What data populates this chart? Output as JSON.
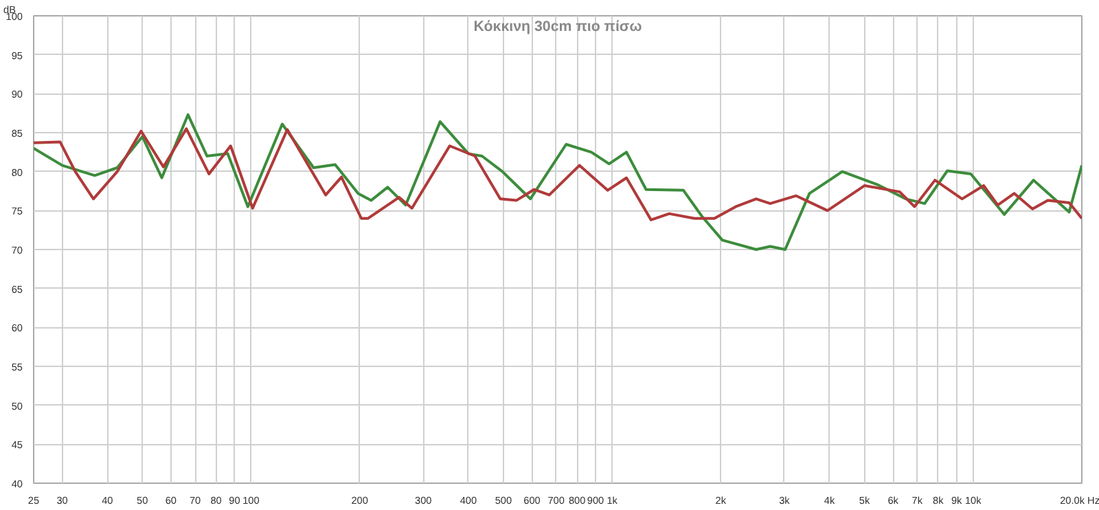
{
  "chart_data": {
    "type": "line",
    "title": "Κόκκινη 30cm πιο πίσω",
    "ylabel": "dB",
    "log": "x",
    "grid": true,
    "line_style": "solid",
    "xlim": [
      25,
      20000
    ],
    "ylim": [
      40,
      100
    ],
    "xticks": [
      25,
      30,
      40,
      50,
      60,
      70,
      80,
      90,
      100,
      200,
      300,
      400,
      500,
      600,
      700,
      800,
      900,
      {
        "value": 1000,
        "label": "1k"
      },
      {
        "value": 2000,
        "label": "2k"
      },
      {
        "value": 3000,
        "label": "3k"
      },
      {
        "value": 4000,
        "label": "4k"
      },
      {
        "value": 5000,
        "label": "5k"
      },
      {
        "value": 6000,
        "label": "6k"
      },
      {
        "value": 7000,
        "label": "7k"
      },
      {
        "value": 8000,
        "label": "8k"
      },
      {
        "value": 9000,
        "label": "9k"
      },
      {
        "value": 10000,
        "label": "10k"
      },
      {
        "value": 20000,
        "label": "20.0k Hz"
      }
    ],
    "yticks": [
      40,
      45,
      50,
      55,
      60,
      65,
      70,
      75,
      80,
      85,
      90,
      95,
      100
    ],
    "series": [
      {
        "color": "#3c8c3c",
        "x": [
          25,
          30,
          36.9,
          42.6,
          50,
          56.6,
          66.9,
          75.5,
          86.2,
          98,
          122,
          149,
          171,
          198,
          215,
          239,
          268,
          334,
          400,
          436,
          497,
          594,
          746,
          876,
          981,
          1096,
          1242,
          1576,
          1771,
          2020,
          2507,
          2741,
          3015,
          3522,
          4340,
          5450,
          6500,
          7340,
          8480,
          9850,
          12200,
          14700,
          18450,
          20000
        ],
        "values": [
          83,
          80.8,
          79.5,
          80.5,
          84.5,
          79.2,
          87.3,
          82,
          82.3,
          75.5,
          86.1,
          80.5,
          80.9,
          77.2,
          76.3,
          78,
          75.7,
          86.4,
          82.3,
          82,
          80,
          76.5,
          83.5,
          82.5,
          81,
          82.5,
          77.7,
          77.6,
          74.3,
          71.2,
          70,
          70.4,
          70,
          77.2,
          80,
          78.3,
          76.5,
          75.9,
          80.1,
          79.7,
          74.5,
          78.9,
          74.8,
          80.8
        ]
      },
      {
        "color": "#b03a3a",
        "x": [
          25,
          29.6,
          32.6,
          36.6,
          42.6,
          49.6,
          57.2,
          66.2,
          76.5,
          87.8,
          101,
          126,
          161,
          178,
          202,
          211,
          257,
          279,
          355,
          417,
          490,
          543,
          608,
          670,
          812,
          972,
          1096,
          1282,
          1440,
          1690,
          1920,
          2200,
          2507,
          2741,
          3230,
          3950,
          5000,
          6260,
          6880,
          7840,
          9320,
          10700,
          11700,
          13000,
          14600,
          16100,
          18450,
          20000
        ],
        "values": [
          83.7,
          83.8,
          80,
          76.5,
          80,
          85.2,
          80.6,
          85.5,
          79.7,
          83.3,
          75.3,
          85.4,
          77,
          79.3,
          74,
          74,
          76.7,
          75.3,
          83.3,
          82,
          76.5,
          76.3,
          77.7,
          77,
          80.8,
          77.6,
          79.2,
          73.8,
          74.6,
          74,
          74,
          75.5,
          76.5,
          75.9,
          76.9,
          75,
          78.2,
          77.4,
          75.5,
          78.9,
          76.5,
          78.2,
          75.7,
          77.2,
          75.2,
          76.3,
          76,
          74
        ]
      }
    ]
  }
}
